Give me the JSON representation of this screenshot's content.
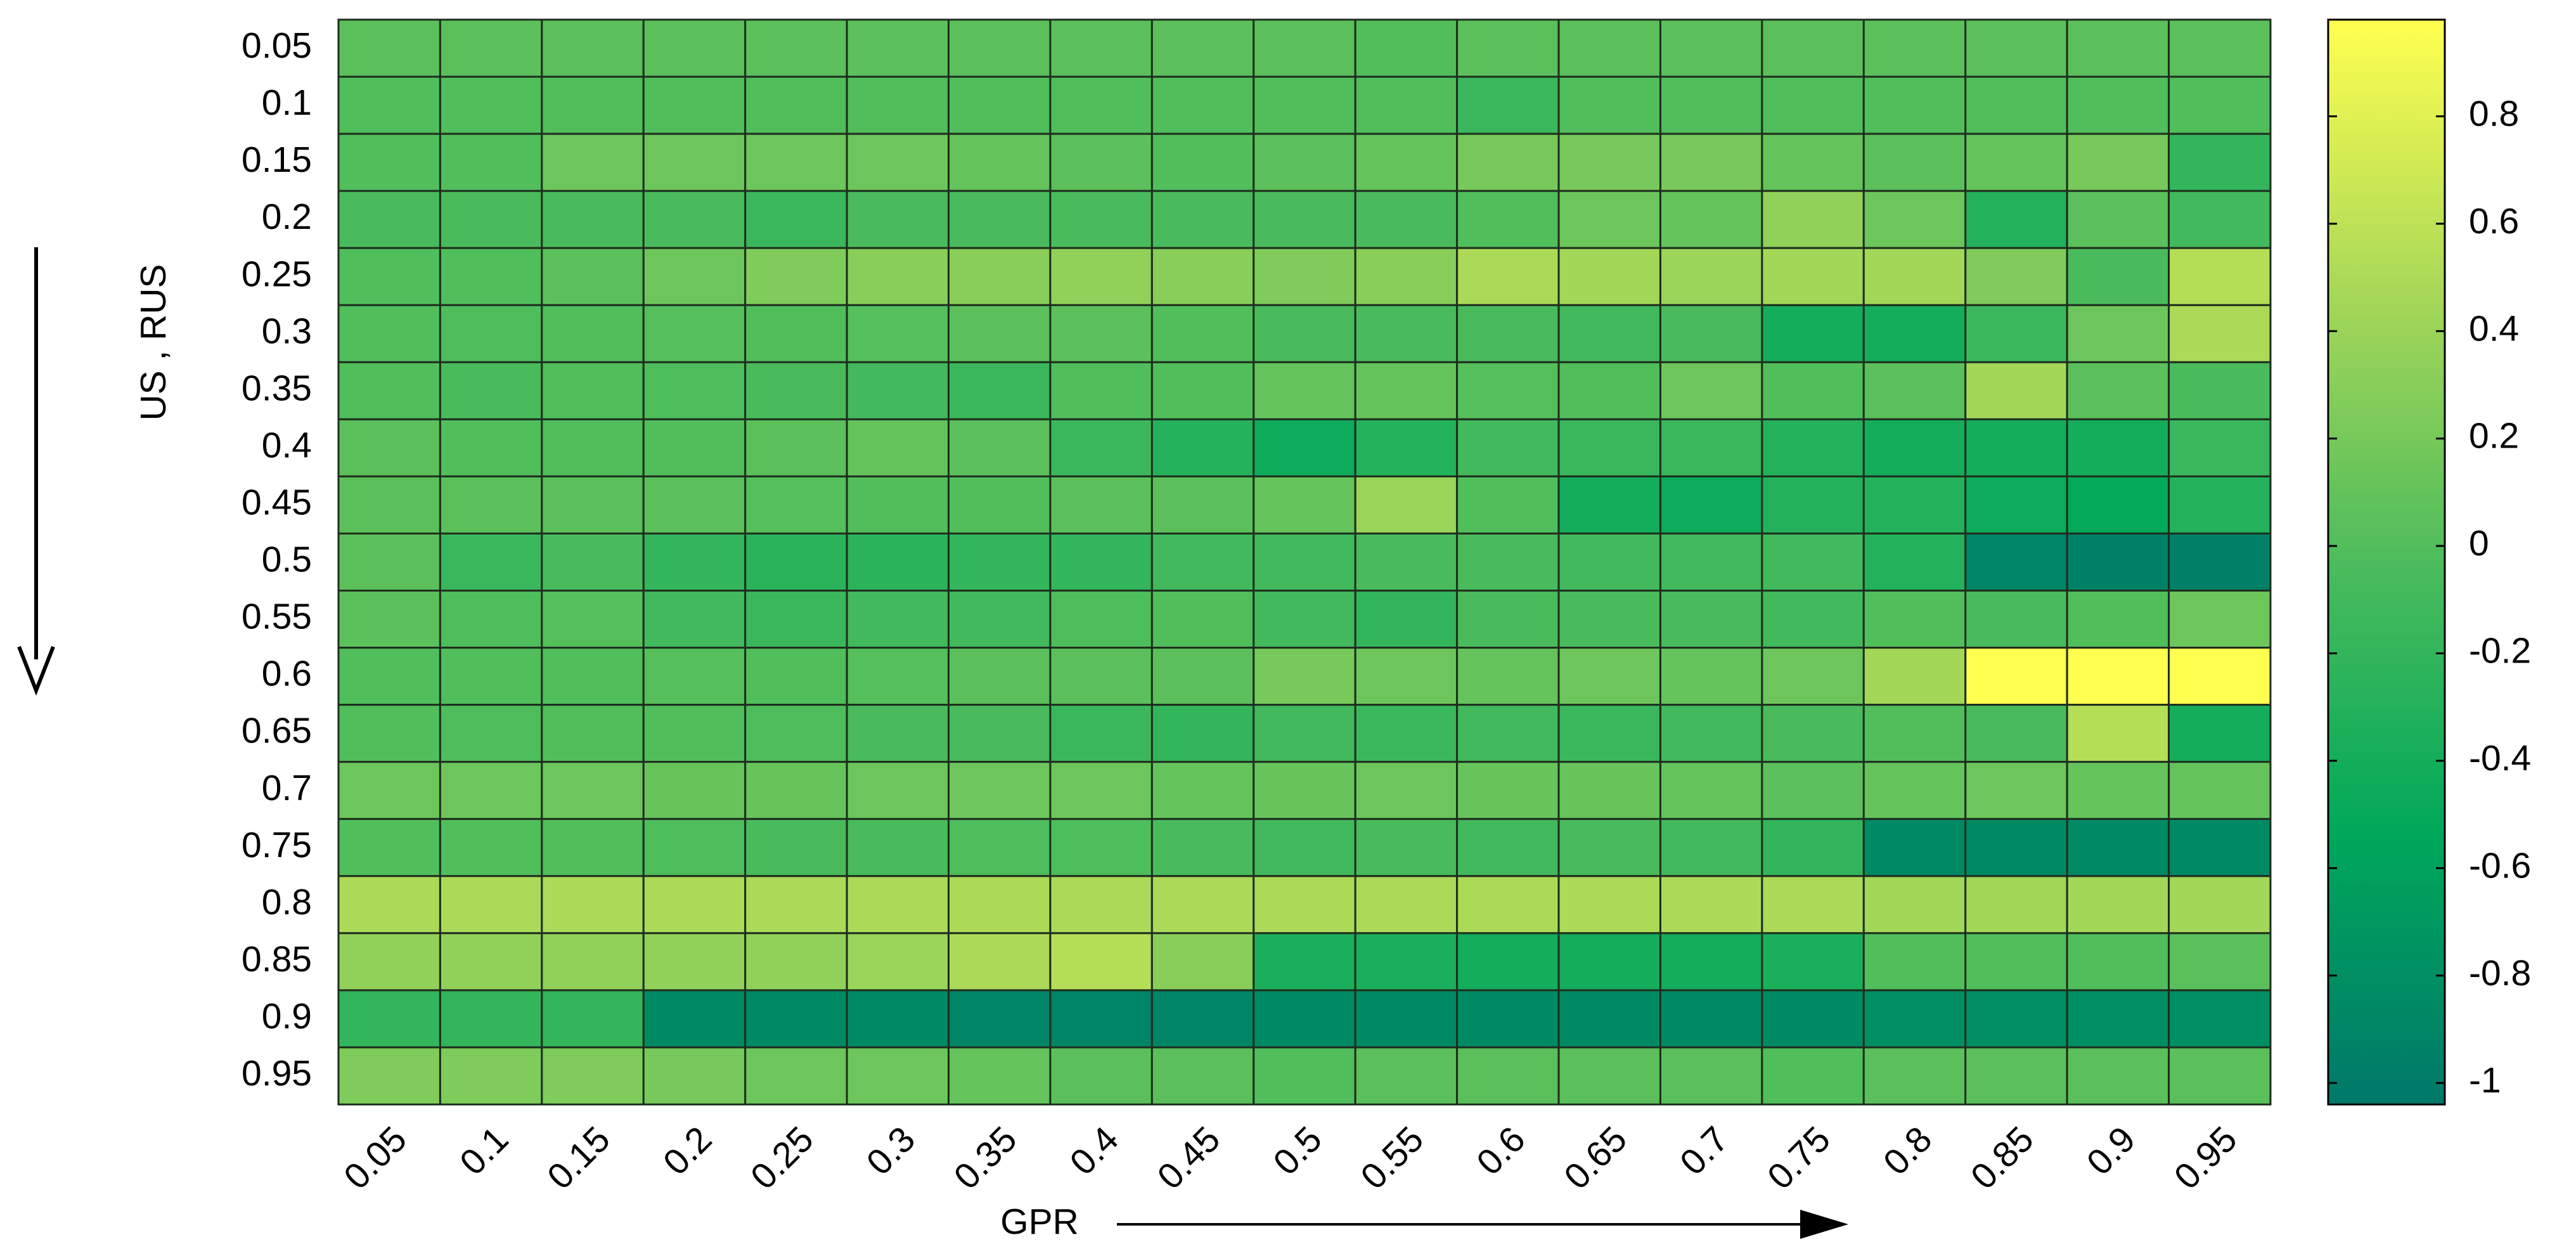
{
  "chart_data": {
    "type": "heatmap",
    "xlabel": "GPR",
    "ylabel": "US , RUS",
    "categories": [
      "0.05",
      "0.1",
      "0.15",
      "0.2",
      "0.25",
      "0.3",
      "0.35",
      "0.4",
      "0.45",
      "0.5",
      "0.55",
      "0.6",
      "0.65",
      "0.7",
      "0.75",
      "0.8",
      "0.85",
      "0.9",
      "0.95"
    ],
    "y_categories": [
      "0.05",
      "0.1",
      "0.15",
      "0.2",
      "0.25",
      "0.3",
      "0.35",
      "0.4",
      "0.45",
      "0.5",
      "0.55",
      "0.6",
      "0.65",
      "0.7",
      "0.75",
      "0.8",
      "0.85",
      "0.9",
      "0.95"
    ],
    "values": [
      [
        0.05,
        0.05,
        0.05,
        0.05,
        0.05,
        0.05,
        0.05,
        0.05,
        0.05,
        0.05,
        0,
        0.05,
        0.05,
        0.05,
        0.05,
        0.05,
        0.05,
        0.05,
        0.05
      ],
      [
        0,
        0,
        0,
        0,
        0,
        0,
        0,
        0,
        0,
        0,
        0,
        -0.15,
        0,
        0,
        0,
        0,
        0,
        0,
        0
      ],
      [
        0,
        0,
        0.15,
        0.15,
        0.15,
        0.15,
        0.1,
        0.05,
        0,
        0.05,
        0.1,
        0.2,
        0.2,
        0.2,
        0.1,
        0.05,
        0.1,
        0.2,
        -0.2
      ],
      [
        -0.05,
        -0.05,
        -0.05,
        -0.05,
        -0.15,
        -0.05,
        -0.05,
        -0.05,
        -0.05,
        -0.05,
        -0.05,
        0,
        0.15,
        0.1,
        0.35,
        0.15,
        -0.3,
        0.05,
        -0.1
      ],
      [
        0,
        0,
        0.05,
        0.15,
        0.25,
        0.3,
        0.3,
        0.35,
        0.3,
        0.25,
        0.3,
        0.5,
        0.45,
        0.4,
        0.45,
        0.45,
        0.25,
        -0.05,
        0.55
      ],
      [
        0,
        -0.02,
        0,
        0.02,
        0,
        0.02,
        0.05,
        0.05,
        0,
        -0.05,
        -0.05,
        -0.05,
        -0.1,
        -0.05,
        -0.4,
        -0.4,
        -0.15,
        0.15,
        0.5
      ],
      [
        0,
        -0.05,
        0,
        -0.02,
        -0.05,
        -0.1,
        -0.15,
        0,
        0,
        0.1,
        0.1,
        0.02,
        0,
        0.15,
        0,
        0.05,
        0.45,
        0.05,
        -0.05
      ],
      [
        0.05,
        0,
        0,
        0,
        0.05,
        0.1,
        0.05,
        -0.15,
        -0.3,
        -0.45,
        -0.3,
        -0.1,
        -0.15,
        -0.15,
        -0.3,
        -0.4,
        -0.4,
        -0.4,
        -0.15
      ],
      [
        0.05,
        0.05,
        0.05,
        0.05,
        0.02,
        0,
        0,
        0.05,
        0.05,
        0.1,
        0.4,
        0,
        -0.4,
        -0.45,
        -0.3,
        -0.3,
        -0.45,
        -0.5,
        -0.3
      ],
      [
        0.05,
        -0.15,
        -0.05,
        -0.2,
        -0.25,
        -0.25,
        -0.2,
        -0.2,
        -0.1,
        -0.1,
        -0.05,
        -0.05,
        -0.1,
        -0.1,
        -0.1,
        -0.3,
        -0.9,
        -0.95,
        -0.95
      ],
      [
        0.05,
        -0.02,
        0.02,
        -0.1,
        -0.15,
        -0.1,
        -0.1,
        -0.02,
        0,
        -0.1,
        -0.2,
        -0.05,
        -0.05,
        -0.05,
        -0.1,
        0,
        -0.05,
        0,
        0.15
      ],
      [
        0,
        0,
        0,
        0.02,
        0,
        0.02,
        0.05,
        0.05,
        0.05,
        0.2,
        0.15,
        0.1,
        0.15,
        0.1,
        0.15,
        0.45,
        0.98,
        0.98,
        0.98
      ],
      [
        0,
        -0.02,
        0,
        0,
        -0.02,
        -0.05,
        -0.05,
        -0.15,
        -0.2,
        -0.1,
        -0.15,
        -0.1,
        -0.15,
        -0.1,
        -0.05,
        0,
        -0.05,
        0.55,
        -0.4
      ],
      [
        0.15,
        0.15,
        0.15,
        0.12,
        0.12,
        0.15,
        0.15,
        0.15,
        0.1,
        0.12,
        0.15,
        0.12,
        0.12,
        0.1,
        0.05,
        0.1,
        0.15,
        0.1,
        0.1
      ],
      [
        0,
        0,
        0,
        -0.02,
        -0.05,
        -0.05,
        -0.02,
        -0.02,
        -0.05,
        -0.1,
        -0.05,
        -0.1,
        -0.05,
        -0.1,
        -0.2,
        -0.85,
        -0.85,
        -0.85,
        -0.85
      ],
      [
        0.5,
        0.5,
        0.5,
        0.5,
        0.5,
        0.5,
        0.5,
        0.5,
        0.5,
        0.5,
        0.5,
        0.5,
        0.5,
        0.5,
        0.5,
        0.45,
        0.45,
        0.45,
        0.45
      ],
      [
        0.35,
        0.35,
        0.35,
        0.35,
        0.35,
        0.4,
        0.5,
        0.55,
        0.3,
        -0.35,
        -0.35,
        -0.4,
        -0.4,
        -0.4,
        -0.35,
        0,
        0,
        0,
        0.05
      ],
      [
        -0.2,
        -0.2,
        -0.2,
        -0.85,
        -0.85,
        -0.85,
        -0.9,
        -0.9,
        -0.9,
        -0.85,
        -0.85,
        -0.85,
        -0.85,
        -0.85,
        -0.85,
        -0.8,
        -0.8,
        -0.8,
        -0.8
      ],
      [
        0.25,
        0.25,
        0.25,
        0.2,
        0.15,
        0.15,
        0.1,
        0.05,
        0.05,
        0,
        0.05,
        0.05,
        0.05,
        0.05,
        0,
        0.05,
        0.05,
        0.05,
        0.05
      ]
    ],
    "colormap": [
      "#00786a",
      "#00a85a",
      "#4cbc5c",
      "#a8d858",
      "#ffff50"
    ],
    "zlim": [
      -1.04,
      0.98
    ],
    "zticks": [
      -1,
      -0.8,
      -0.6,
      -0.4,
      -0.2,
      0,
      0.2,
      0.4,
      0.6,
      0.8
    ]
  }
}
